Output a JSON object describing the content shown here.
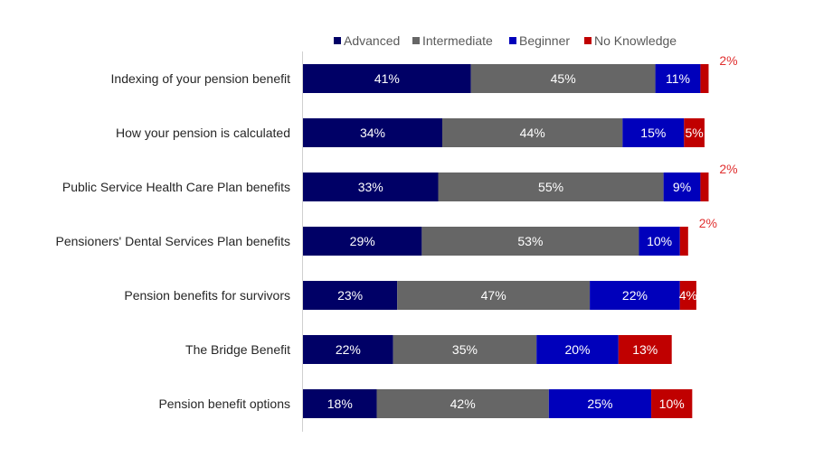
{
  "chart_data": {
    "type": "bar",
    "orientation": "horizontal",
    "stacked": true,
    "title": "",
    "xlabel": "",
    "ylabel": "",
    "xlim": [
      0,
      100
    ],
    "grid": false,
    "legend_position": "top",
    "categories": [
      "Indexing of your pension benefit",
      "How your pension is calculated",
      "Public Service Health Care Plan benefits",
      "Pensioners' Dental Services Plan benefits",
      "Pension benefits for survivors",
      "The Bridge Benefit",
      "Pension benefit options"
    ],
    "series": [
      {
        "name": "Advanced",
        "color": "#000066",
        "values": [
          41,
          34,
          33,
          29,
          23,
          22,
          18
        ]
      },
      {
        "name": "Intermediate",
        "color": "#666666",
        "values": [
          45,
          44,
          55,
          53,
          47,
          35,
          42
        ]
      },
      {
        "name": "Beginner",
        "color": "#0000bb",
        "values": [
          11,
          15,
          9,
          10,
          22,
          20,
          25
        ]
      },
      {
        "name": "No Knowledge",
        "color": "#c00000",
        "values": [
          2,
          5,
          2,
          2,
          4,
          13,
          10
        ]
      }
    ],
    "value_suffix": "%",
    "outside_label_color": "#e03030"
  }
}
